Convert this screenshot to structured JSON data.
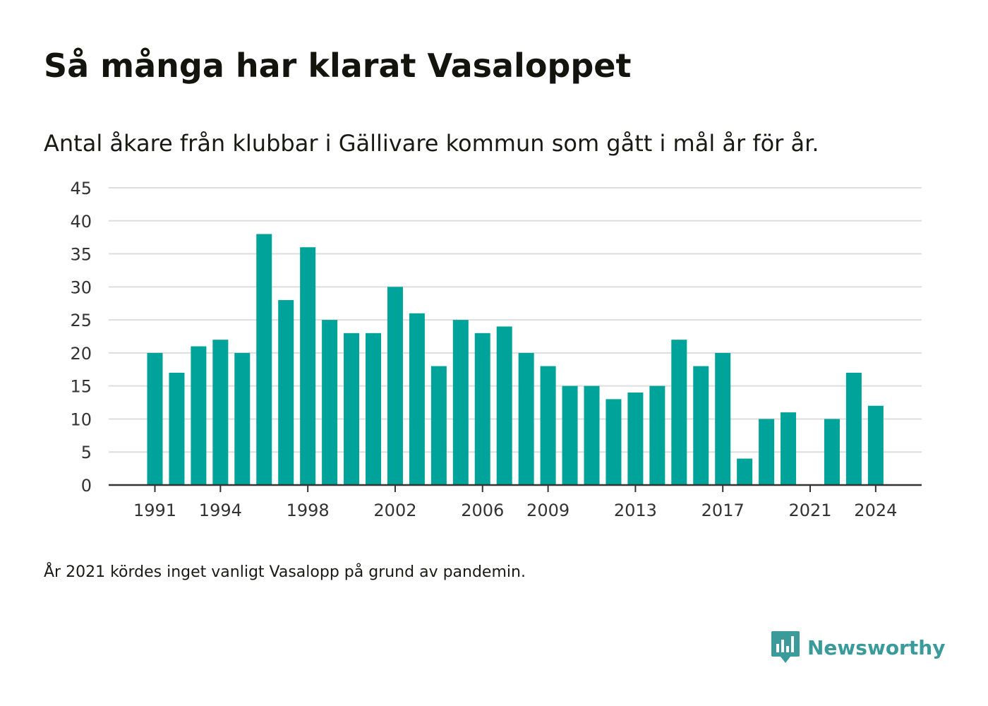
{
  "title": "Så många har klarat Vasaloppet",
  "subtitle": "Antal åkare från klubbar i Gällivare kommun som gått i mål år för år.",
  "note": "År 2021 kördes inget vanligt Vasalopp på grund av pandemin.",
  "brand": {
    "name": "Newsworthy",
    "icon": "bar-chart-speech-icon",
    "color": "#3a9b9a"
  },
  "chart_data": {
    "type": "bar",
    "title": "",
    "xlabel": "",
    "ylabel": "",
    "categories": [
      "1991",
      "1992",
      "1993",
      "1994",
      "1995",
      "1996",
      "1997",
      "1998",
      "1999",
      "2000",
      "2001",
      "2002",
      "2003",
      "2004",
      "2005",
      "2006",
      "2007",
      "2008",
      "2009",
      "2010",
      "2011",
      "2012",
      "2013",
      "2014",
      "2015",
      "2016",
      "2017",
      "2018",
      "2019",
      "2020",
      "2021",
      "2022",
      "2023",
      "2024"
    ],
    "values": [
      20,
      17,
      21,
      22,
      20,
      38,
      28,
      36,
      25,
      23,
      23,
      30,
      26,
      18,
      25,
      23,
      24,
      20,
      18,
      15,
      15,
      13,
      14,
      15,
      22,
      18,
      20,
      4,
      10,
      11,
      null,
      10,
      17,
      12
    ],
    "x_tick_labels": [
      "1991",
      "1994",
      "1998",
      "2002",
      "2006",
      "2009",
      "2013",
      "2017",
      "2021",
      "2024"
    ],
    "y_ticks": [
      0,
      5,
      10,
      15,
      20,
      25,
      30,
      35,
      40,
      45
    ],
    "ylim": [
      0,
      45
    ],
    "grid": true,
    "bar_color": "#00a399"
  }
}
